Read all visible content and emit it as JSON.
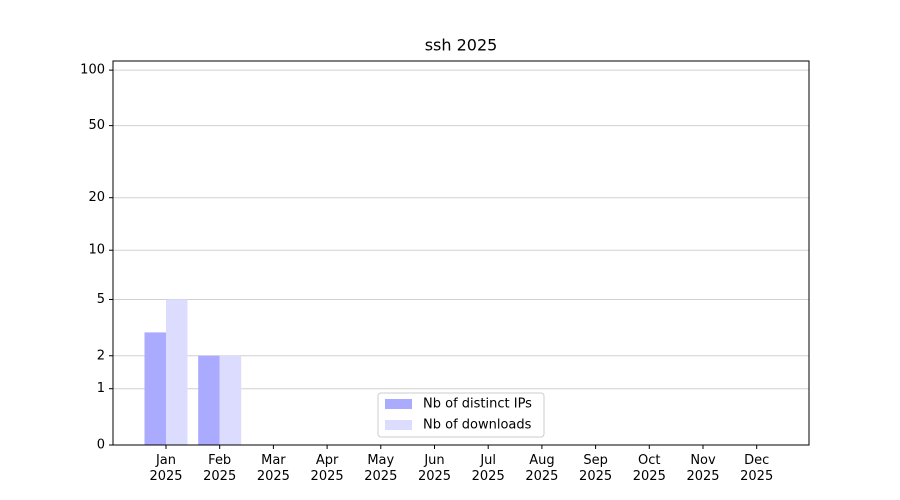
{
  "chart_data": {
    "type": "bar",
    "title": "ssh 2025",
    "categories": [
      "Jan\n2025",
      "Feb\n2025",
      "Mar\n2025",
      "Apr\n2025",
      "May\n2025",
      "Jun\n2025",
      "Jul\n2025",
      "Aug\n2025",
      "Sep\n2025",
      "Oct\n2025",
      "Nov\n2025",
      "Dec\n2025"
    ],
    "series": [
      {
        "name": "Nb of distinct IPs",
        "color": "#aaaaff",
        "values": [
          3,
          2,
          null,
          null,
          null,
          null,
          null,
          null,
          null,
          null,
          null,
          null
        ]
      },
      {
        "name": "Nb of downloads",
        "color": "#dcdcff",
        "values": [
          5,
          2,
          null,
          null,
          null,
          null,
          null,
          null,
          null,
          null,
          null,
          null
        ]
      }
    ],
    "yscale": "log1p",
    "ylim": [
      0,
      112
    ],
    "yticks": [
      0,
      1,
      2,
      5,
      10,
      20,
      50,
      100
    ],
    "grid": true,
    "legend": "lower center"
  }
}
